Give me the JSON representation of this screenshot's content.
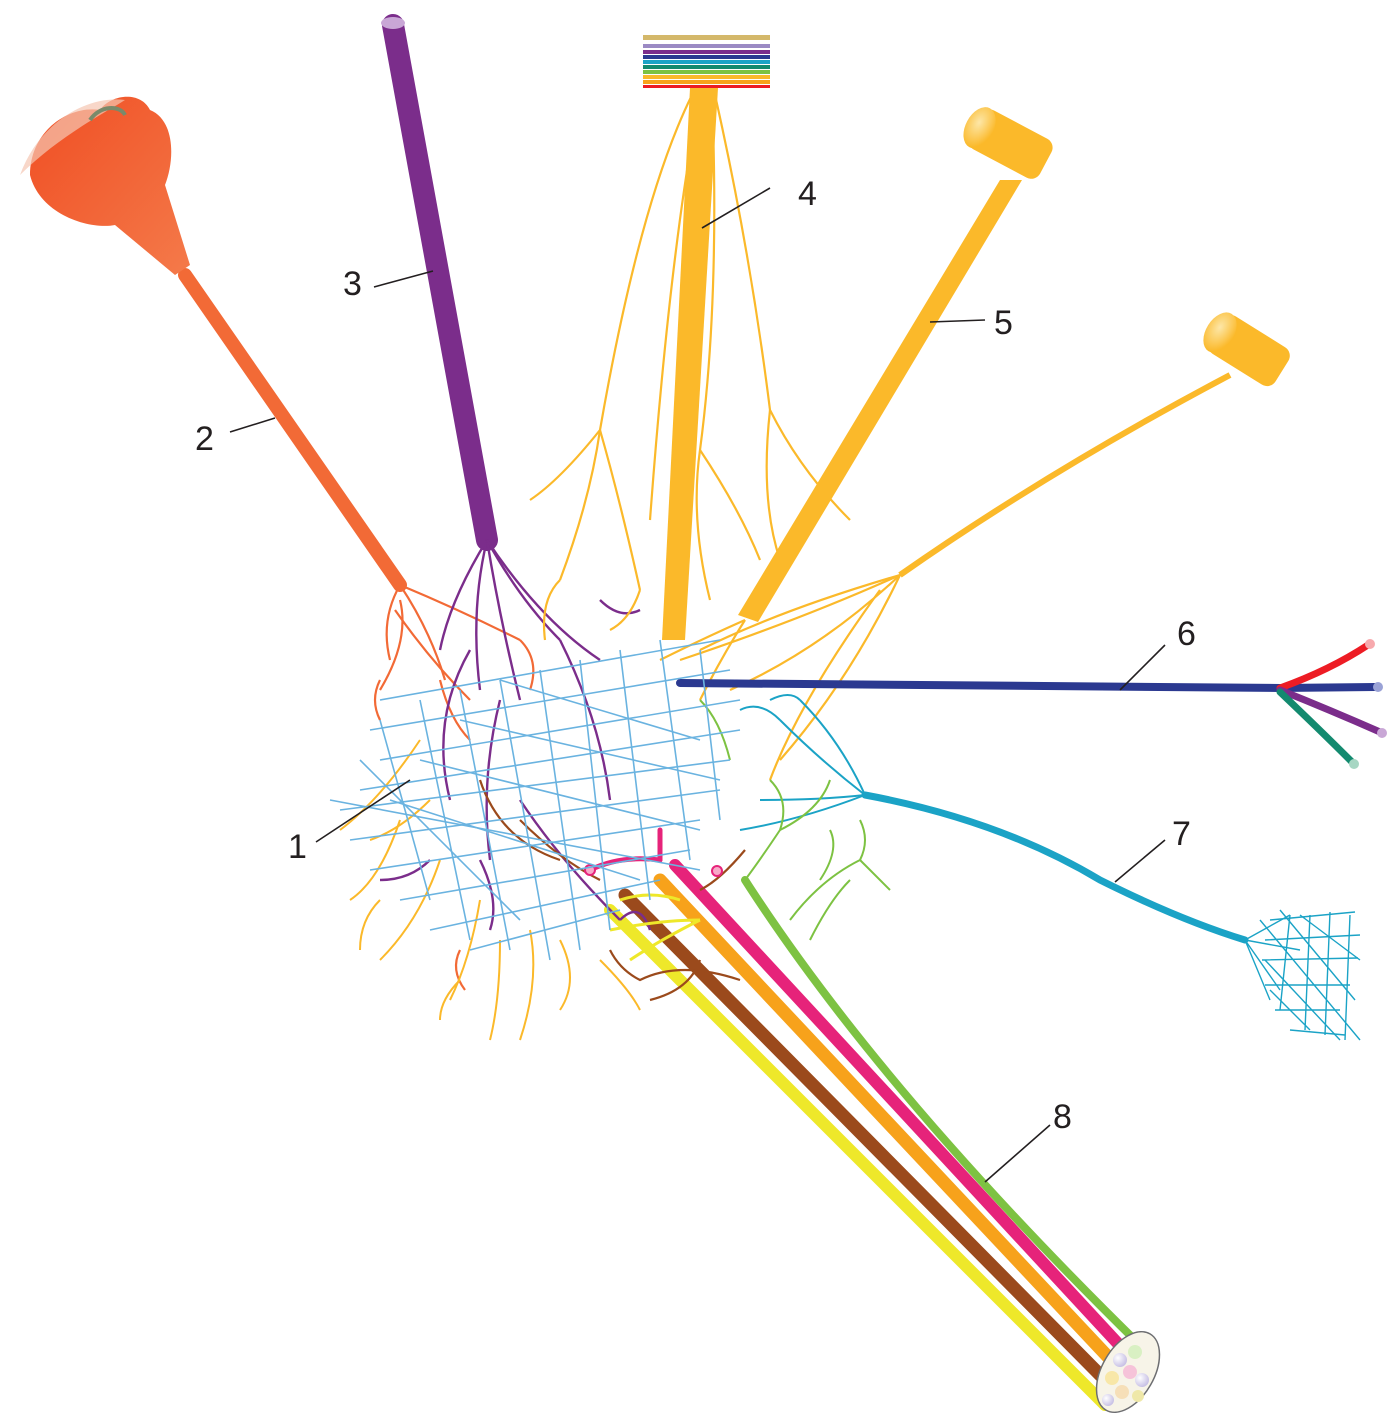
{
  "callouts": [
    {
      "id": "1",
      "label": "1"
    },
    {
      "id": "2",
      "label": "2"
    },
    {
      "id": "3",
      "label": "3"
    },
    {
      "id": "4",
      "label": "4"
    },
    {
      "id": "5",
      "label": "5"
    },
    {
      "id": "6",
      "label": "6"
    },
    {
      "id": "7",
      "label": "7"
    },
    {
      "id": "8",
      "label": "8"
    }
  ],
  "colors": {
    "orange_red": "#f04e23",
    "orange": "#f26a36",
    "purple": "#7b2d8b",
    "gold": "#fbb92a",
    "light_gold": "#fcc44a",
    "dark_blue": "#2b3990",
    "cyan": "#1ba3c6",
    "light_blue": "#6ab3e0",
    "magenta": "#e6237a",
    "brown": "#9b4a1c",
    "yellow": "#eee82a",
    "amber": "#f7a21b",
    "green": "#7dc242",
    "teal": "#138a6f",
    "red": "#ed1c24"
  },
  "icons": {
    "receptor_2": "flower-receptor-icon",
    "stripes_4": "stacked-layers-icon",
    "plug_5": "cylinder-terminal-icon",
    "plug_5b": "cylinder-terminal-icon",
    "bundle_8": "fiber-bundle-icon"
  }
}
